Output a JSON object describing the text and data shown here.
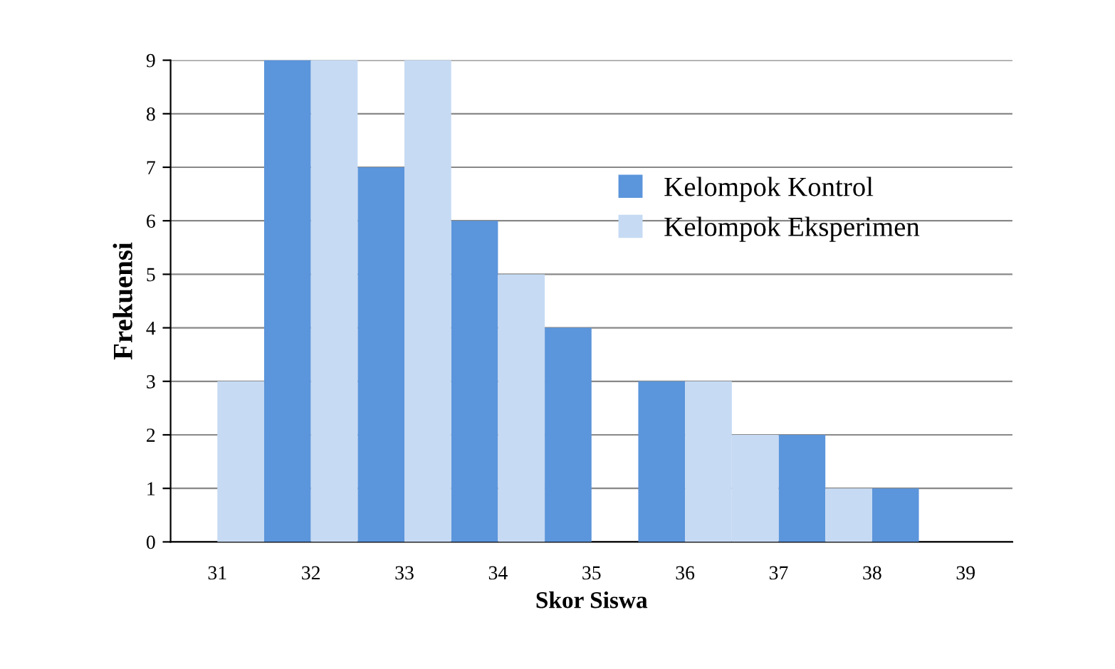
{
  "chart_data": {
    "type": "bar",
    "xlabel": "Skor Siswa",
    "ylabel": "Frekuensi",
    "xlim": [
      30.5,
      39.5
    ],
    "xticks": [
      31,
      32,
      33,
      34,
      35,
      36,
      37,
      38,
      39
    ],
    "ylim": [
      0,
      9
    ],
    "yticks": [
      0,
      1,
      2,
      3,
      4,
      5,
      6,
      7,
      8,
      9
    ],
    "grid": "y",
    "legend": "top right",
    "series": [
      {
        "name": "Kelompok Kontrol",
        "color": "#5b95db",
        "x": [
          31.75,
          32.75,
          33.75,
          34.75,
          35.75,
          37.25,
          38.25
        ],
        "values": [
          9,
          7,
          6,
          4,
          3,
          2,
          1
        ]
      },
      {
        "name": "Kelompok Eksperimen",
        "color": "#c6daf3",
        "x": [
          31.25,
          32.25,
          33.25,
          34.25,
          36.25,
          36.75,
          37.75
        ],
        "values": [
          3,
          9,
          9,
          5,
          3,
          2,
          1
        ]
      }
    ]
  }
}
